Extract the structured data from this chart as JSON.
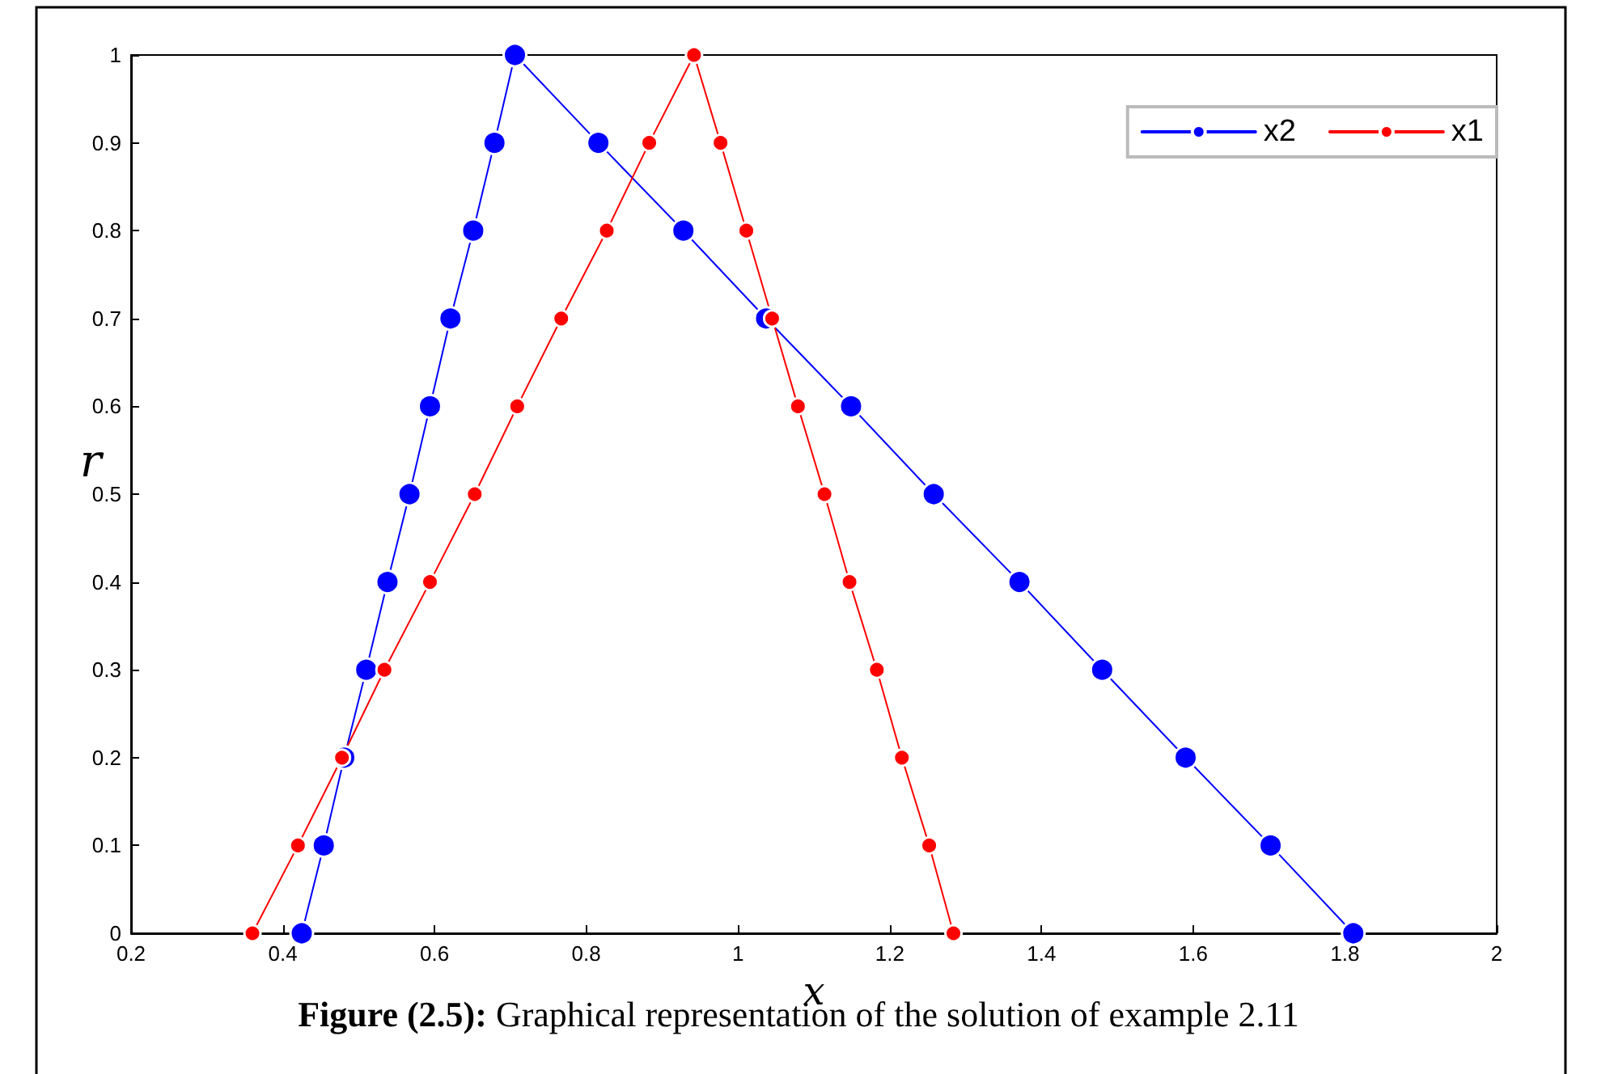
{
  "chart_data": {
    "type": "line",
    "xlabel": "x",
    "ylabel": "r",
    "xlim": [
      0.2,
      2
    ],
    "ylim": [
      0,
      1
    ],
    "xticks": [
      0.2,
      0.4,
      0.6,
      0.8,
      1,
      1.2,
      1.4,
      1.6,
      1.8,
      2
    ],
    "yticks": [
      0,
      0.1,
      0.2,
      0.3,
      0.4,
      0.5,
      0.6,
      0.7,
      0.8,
      0.9,
      1
    ],
    "grid": false,
    "legend": "top right",
    "marker": "circle",
    "line_style": "solid",
    "series": [
      {
        "name": "x2",
        "color": "#0000ff",
        "x": [
          0.425,
          0.454,
          0.481,
          0.51,
          0.538,
          0.567,
          0.594,
          0.621,
          0.651,
          0.679,
          0.706,
          0.816,
          0.928,
          1.037,
          1.149,
          1.258,
          1.371,
          1.48,
          1.59,
          1.702,
          1.811
        ],
        "values": [
          0,
          0.1,
          0.2,
          0.3,
          0.4,
          0.5,
          0.6,
          0.7,
          0.8,
          0.9,
          1,
          0.9,
          0.8,
          0.7,
          0.6,
          0.5,
          0.4,
          0.3,
          0.2,
          0.1,
          0
        ]
      },
      {
        "name": "x1",
        "color": "#ff0000",
        "x": [
          0.36,
          0.42,
          0.478,
          0.534,
          0.594,
          0.653,
          0.709,
          0.767,
          0.827,
          0.883,
          0.942,
          0.977,
          1.011,
          1.045,
          1.079,
          1.114,
          1.147,
          1.183,
          1.216,
          1.252,
          1.284
        ],
        "values": [
          0,
          0.1,
          0.2,
          0.3,
          0.4,
          0.5,
          0.6,
          0.7,
          0.8,
          0.9,
          1,
          0.9,
          0.8,
          0.7,
          0.6,
          0.5,
          0.4,
          0.3,
          0.2,
          0.1,
          0
        ]
      }
    ],
    "annotations": [
      "Figure (2.5): Graphical representation of the solution of example 2.11"
    ]
  }
}
